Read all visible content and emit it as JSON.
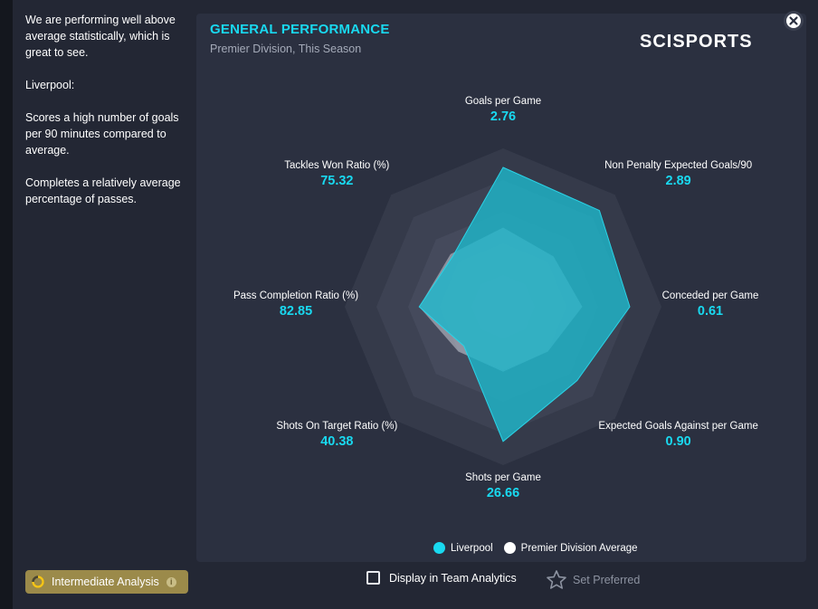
{
  "sidebar": {
    "paragraphs": [
      "We are performing well above average statistically, which is great to see.",
      "Liverpool:",
      "Scores a high number of goals per 90 minutes compared to average.",
      "Completes a relatively average percentage of passes."
    ],
    "analysis_button": "Intermediate Analysis",
    "analysis_info_glyph": "i"
  },
  "card": {
    "title": "GENERAL PERFORMANCE",
    "subtitle": "Premier Division, This Season",
    "logo": "SCISPORTS"
  },
  "chart_data": {
    "type": "radar",
    "axes": [
      {
        "name": "Goals per Game",
        "value": "2.76",
        "team_level": 0.88,
        "avg_level": 0.5
      },
      {
        "name": "Non Penalty Expected Goals/90",
        "value": "2.89",
        "team_level": 0.86,
        "avg_level": 0.45
      },
      {
        "name": "Conceded per Game",
        "value": "0.61",
        "team_level": 0.8,
        "avg_level": 0.5
      },
      {
        "name": "Expected Goals Against per Game",
        "value": "0.90",
        "team_level": 0.66,
        "avg_level": 0.4
      },
      {
        "name": "Shots per Game",
        "value": "26.66",
        "team_level": 0.85,
        "avg_level": 0.41
      },
      {
        "name": "Shots On Target Ratio (%)",
        "value": "40.38",
        "team_level": 0.35,
        "avg_level": 0.4
      },
      {
        "name": "Pass Completion Ratio (%)",
        "value": "82.85",
        "team_level": 0.53,
        "avg_level": 0.53
      },
      {
        "name": "Tackles Won Ratio (%)",
        "value": "75.32",
        "team_level": 0.45,
        "avg_level": 0.47
      }
    ],
    "series": [
      {
        "name": "Liverpool",
        "color": "#1fb6c9"
      },
      {
        "name": "Premier Division Average",
        "color": "#ffffff"
      }
    ]
  },
  "footer": {
    "display_toggle_label": "Display in Team Analytics",
    "set_preferred_label": "Set Preferred"
  },
  "colors": {
    "accent": "#19d9f0",
    "team_fill": "#1fb6c9",
    "gold": "#9b8a4a"
  }
}
